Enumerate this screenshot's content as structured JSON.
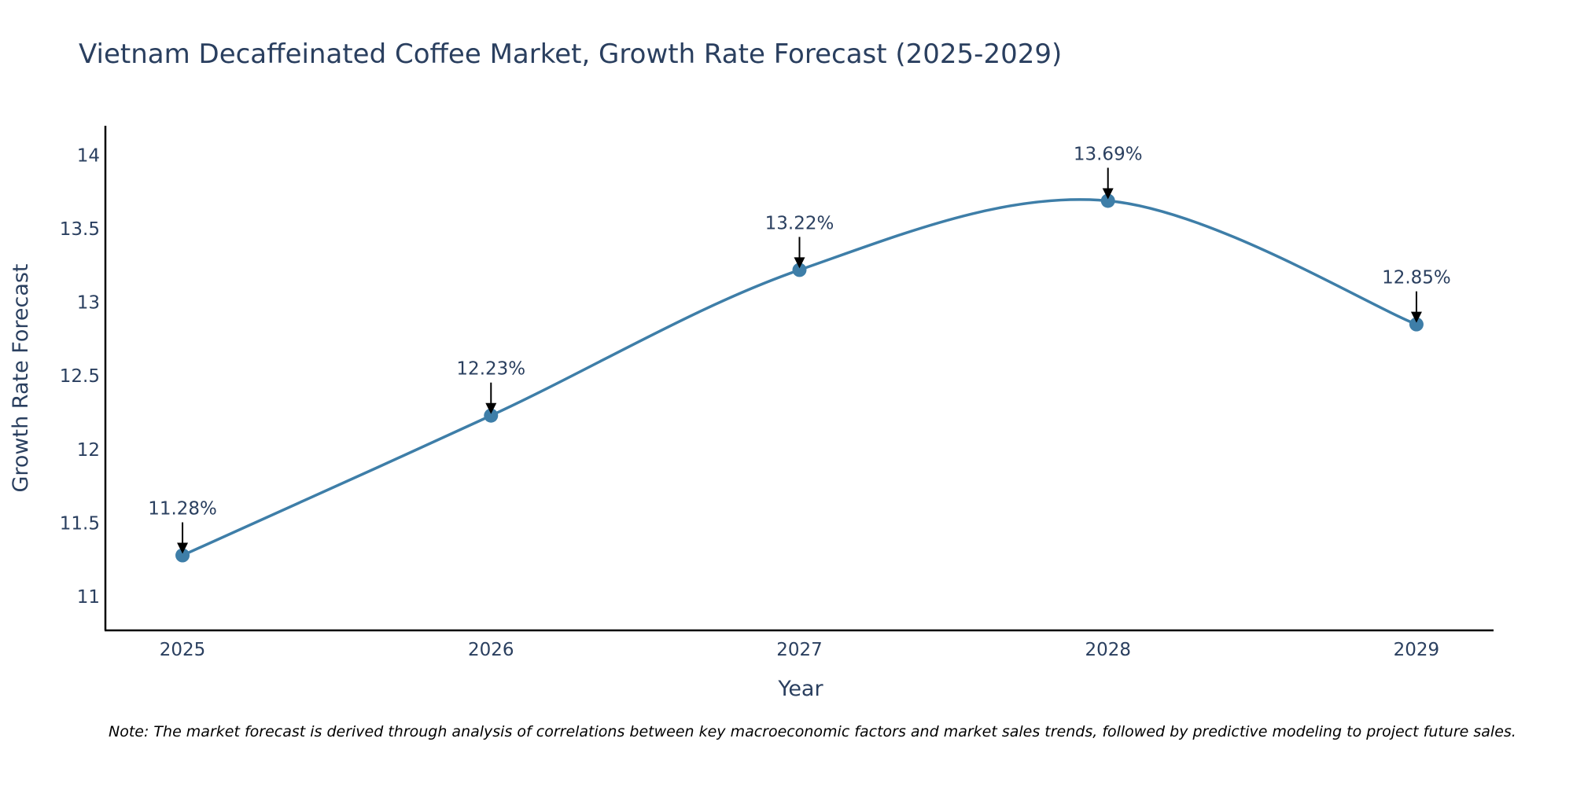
{
  "chart_data": {
    "type": "line",
    "title": "Vietnam Decaffeinated Coffee Market, Growth Rate Forecast (2025-2029)",
    "xlabel": "Year",
    "ylabel": "Growth Rate Forecast",
    "categories": [
      "2025",
      "2026",
      "2027",
      "2028",
      "2029"
    ],
    "values": [
      11.28,
      12.23,
      13.22,
      13.69,
      12.85
    ],
    "data_labels": [
      "11.28%",
      "12.23%",
      "13.22%",
      "13.69%",
      "12.85%"
    ],
    "yticks": [
      11,
      11.5,
      12,
      12.5,
      13,
      13.5,
      14
    ],
    "ytick_labels": [
      "11",
      "11.5",
      "12",
      "12.5",
      "13",
      "13.5",
      "14"
    ],
    "ylim": [
      10.77,
      14.2
    ],
    "xlim": [
      -0.25,
      4.25
    ],
    "grid": false,
    "legend": false,
    "line_shape": "spline",
    "colors": {
      "line": "#3e7ea8",
      "marker": "#3e7ea8",
      "arrow": "#000000",
      "text": "#2a3f5f",
      "axis": "#000000"
    }
  },
  "note": "Note: The market forecast is derived through analysis of correlations between key macroeconomic factors and market sales trends, followed by predictive modeling to project future sales."
}
